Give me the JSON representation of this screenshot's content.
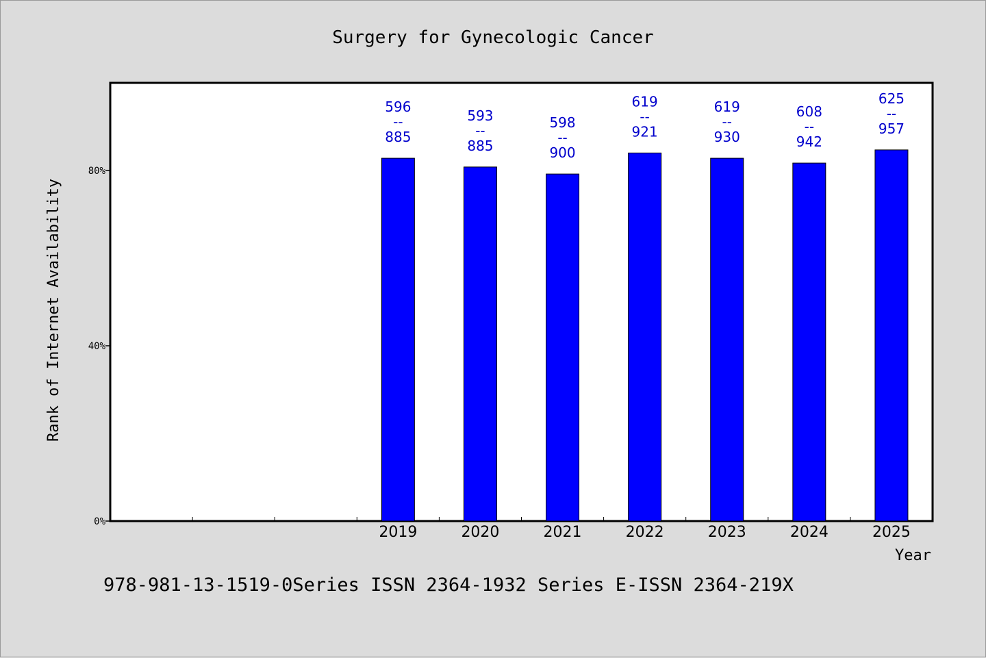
{
  "chart_data": {
    "type": "bar",
    "title": "Surgery for Gynecologic Cancer",
    "xlabel": "Year",
    "ylabel": "Rank of Internet Availability",
    "ylim": [
      0,
      100
    ],
    "yticks": [
      0,
      40,
      80
    ],
    "ytick_labels": [
      "0%",
      "40%",
      "80%"
    ],
    "grid": false,
    "categories": [
      "",
      "",
      "",
      "2019",
      "2020",
      "2021",
      "2022",
      "2023",
      "2024",
      "2025"
    ],
    "values": [
      null,
      null,
      null,
      82.8,
      80.8,
      79.2,
      84.0,
      82.8,
      81.7,
      84.7
    ],
    "data_labels": [
      null,
      null,
      null,
      {
        "top": "596",
        "sep": "--",
        "bottom": "885"
      },
      {
        "top": "593",
        "sep": "--",
        "bottom": "885"
      },
      {
        "top": "598",
        "sep": "--",
        "bottom": "900"
      },
      {
        "top": "619",
        "sep": "--",
        "bottom": "921"
      },
      {
        "top": "619",
        "sep": "--",
        "bottom": "930"
      },
      {
        "top": "608",
        "sep": "--",
        "bottom": "942"
      },
      {
        "top": "625",
        "sep": "--",
        "bottom": "957"
      }
    ],
    "bar_color": "#0000ff",
    "label_color": "#0000cc"
  },
  "footer": "978-981-13-1519-0Series ISSN 2364-1932 Series E-ISSN 2364-219X"
}
